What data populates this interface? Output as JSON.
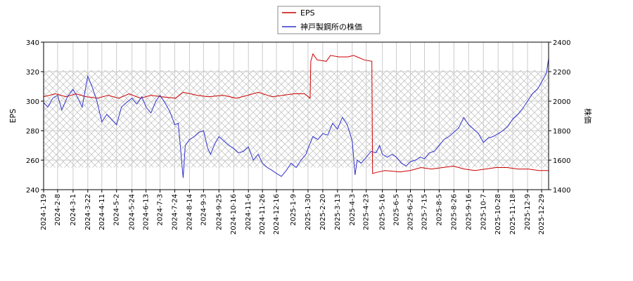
{
  "chart_data": {
    "type": "line",
    "legend": {
      "placement": "top-center",
      "entries": [
        "EPS",
        "神戸製鋼所の株価"
      ]
    },
    "y_left": {
      "label": "EPS",
      "range": [
        240,
        340
      ],
      "ticks": [
        240,
        260,
        280,
        300,
        320,
        340
      ]
    },
    "y_right": {
      "label": "株価",
      "range": [
        1400,
        2400
      ],
      "ticks": [
        1400,
        1600,
        1800,
        2000,
        2200,
        2400
      ]
    },
    "x_ticks": [
      "2024-1-19",
      "2024-2-8",
      "2024-3-1",
      "2024-3-22",
      "2024-4-11",
      "2024-5-2",
      "2024-5-24",
      "2024-6-13",
      "2024-7-3",
      "2024-7-24",
      "2024-8-14",
      "2024-9-3",
      "2024-9-25",
      "2024-10-16",
      "2024-11-6",
      "2024-11-26",
      "2024-12-16",
      "2025-1-9",
      "2025-1-30",
      "2025-2-20",
      "2025-3-13",
      "2025-4-3",
      "2025-4-23",
      "2025-5-16",
      "2025-6-5",
      "2025-6-25",
      "2025-7-15",
      "2025-8-5",
      "2025-8-26",
      "2025-9-16",
      "2025-10-7",
      "2025-10-28",
      "2025-11-18",
      "2025-12-9",
      "2025-12-29"
    ],
    "x_range": [
      "2024-01-19",
      "2026-01-08"
    ],
    "shaded_band": {
      "axis": "left",
      "from": 255,
      "to": 321,
      "pattern": "crosshatch"
    },
    "grid": true,
    "colors": {
      "eps": "#cc0000",
      "price": "#3333cc",
      "grid": "#cccccc",
      "hatch": "#bbbbbb"
    },
    "series": [
      {
        "name": "EPS",
        "axis": "left",
        "points": [
          [
            "2024-01-19",
            303
          ],
          [
            "2024-02-05",
            305
          ],
          [
            "2024-02-20",
            303
          ],
          [
            "2024-03-05",
            305
          ],
          [
            "2024-03-20",
            303
          ],
          [
            "2024-04-05",
            302
          ],
          [
            "2024-04-20",
            304
          ],
          [
            "2024-05-05",
            302
          ],
          [
            "2024-05-20",
            305
          ],
          [
            "2024-06-05",
            302
          ],
          [
            "2024-06-20",
            304
          ],
          [
            "2024-07-05",
            303
          ],
          [
            "2024-07-25",
            302
          ],
          [
            "2024-08-05",
            306
          ],
          [
            "2024-08-25",
            304
          ],
          [
            "2024-09-10",
            303
          ],
          [
            "2024-10-01",
            304
          ],
          [
            "2024-10-20",
            302
          ],
          [
            "2024-11-05",
            304
          ],
          [
            "2024-11-20",
            306
          ],
          [
            "2024-12-10",
            303
          ],
          [
            "2024-12-25",
            304
          ],
          [
            "2025-01-10",
            305
          ],
          [
            "2025-01-25",
            305
          ],
          [
            "2025-02-02",
            302
          ],
          [
            "2025-02-03",
            327
          ],
          [
            "2025-02-06",
            332
          ],
          [
            "2025-02-12",
            328
          ],
          [
            "2025-02-25",
            327
          ],
          [
            "2025-03-03",
            331
          ],
          [
            "2025-03-15",
            330
          ],
          [
            "2025-03-28",
            330
          ],
          [
            "2025-04-05",
            331
          ],
          [
            "2025-04-20",
            328
          ],
          [
            "2025-05-01",
            327
          ],
          [
            "2025-05-02",
            251
          ],
          [
            "2025-05-10",
            252
          ],
          [
            "2025-05-20",
            253
          ],
          [
            "2025-06-10",
            252
          ],
          [
            "2025-06-25",
            253
          ],
          [
            "2025-07-10",
            255
          ],
          [
            "2025-07-25",
            254
          ],
          [
            "2025-08-10",
            255
          ],
          [
            "2025-08-25",
            256
          ],
          [
            "2025-09-10",
            254
          ],
          [
            "2025-09-25",
            253
          ],
          [
            "2025-10-10",
            254
          ],
          [
            "2025-10-25",
            255
          ],
          [
            "2025-11-10",
            255
          ],
          [
            "2025-11-25",
            254
          ],
          [
            "2025-12-10",
            254
          ],
          [
            "2025-12-25",
            253
          ],
          [
            "2026-01-08",
            253
          ]
        ]
      },
      {
        "name": "神戸製鋼所の株価",
        "axis": "right",
        "points": [
          [
            "2024-01-19",
            1990
          ],
          [
            "2024-01-25",
            1960
          ],
          [
            "2024-02-01",
            2020
          ],
          [
            "2024-02-08",
            2040
          ],
          [
            "2024-02-14",
            1940
          ],
          [
            "2024-02-22",
            2030
          ],
          [
            "2024-03-01",
            2080
          ],
          [
            "2024-03-08",
            2020
          ],
          [
            "2024-03-14",
            1960
          ],
          [
            "2024-03-22",
            2170
          ],
          [
            "2024-03-28",
            2100
          ],
          [
            "2024-04-04",
            2000
          ],
          [
            "2024-04-11",
            1860
          ],
          [
            "2024-04-18",
            1910
          ],
          [
            "2024-04-26",
            1870
          ],
          [
            "2024-05-02",
            1840
          ],
          [
            "2024-05-09",
            1960
          ],
          [
            "2024-05-16",
            1990
          ],
          [
            "2024-05-24",
            2020
          ],
          [
            "2024-05-31",
            1980
          ],
          [
            "2024-06-07",
            2030
          ],
          [
            "2024-06-13",
            1960
          ],
          [
            "2024-06-20",
            1920
          ],
          [
            "2024-06-27",
            2000
          ],
          [
            "2024-07-03",
            2040
          ],
          [
            "2024-07-10",
            1990
          ],
          [
            "2024-07-17",
            1930
          ],
          [
            "2024-07-24",
            1840
          ],
          [
            "2024-07-29",
            1850
          ],
          [
            "2024-08-05",
            1480
          ],
          [
            "2024-08-08",
            1700
          ],
          [
            "2024-08-14",
            1740
          ],
          [
            "2024-08-21",
            1760
          ],
          [
            "2024-08-28",
            1790
          ],
          [
            "2024-09-03",
            1800
          ],
          [
            "2024-09-09",
            1680
          ],
          [
            "2024-09-13",
            1640
          ],
          [
            "2024-09-20",
            1720
          ],
          [
            "2024-09-25",
            1760
          ],
          [
            "2024-10-02",
            1730
          ],
          [
            "2024-10-09",
            1700
          ],
          [
            "2024-10-16",
            1680
          ],
          [
            "2024-10-23",
            1650
          ],
          [
            "2024-10-30",
            1660
          ],
          [
            "2024-11-06",
            1690
          ],
          [
            "2024-11-13",
            1600
          ],
          [
            "2024-11-20",
            1640
          ],
          [
            "2024-11-26",
            1580
          ],
          [
            "2024-12-03",
            1550
          ],
          [
            "2024-12-10",
            1530
          ],
          [
            "2024-12-16",
            1510
          ],
          [
            "2024-12-23",
            1490
          ],
          [
            "2024-12-30",
            1530
          ],
          [
            "2025-01-06",
            1580
          ],
          [
            "2025-01-13",
            1550
          ],
          [
            "2025-01-20",
            1600
          ],
          [
            "2025-01-27",
            1640
          ],
          [
            "2025-01-30",
            1680
          ],
          [
            "2025-02-06",
            1760
          ],
          [
            "2025-02-13",
            1740
          ],
          [
            "2025-02-20",
            1780
          ],
          [
            "2025-02-27",
            1770
          ],
          [
            "2025-03-06",
            1850
          ],
          [
            "2025-03-13",
            1810
          ],
          [
            "2025-03-20",
            1890
          ],
          [
            "2025-03-27",
            1840
          ],
          [
            "2025-04-03",
            1730
          ],
          [
            "2025-04-07",
            1500
          ],
          [
            "2025-04-10",
            1600
          ],
          [
            "2025-04-16",
            1580
          ],
          [
            "2025-04-23",
            1620
          ],
          [
            "2025-04-30",
            1660
          ],
          [
            "2025-05-07",
            1650
          ],
          [
            "2025-05-12",
            1700
          ],
          [
            "2025-05-16",
            1640
          ],
          [
            "2025-05-23",
            1620
          ],
          [
            "2025-05-30",
            1640
          ],
          [
            "2025-06-05",
            1620
          ],
          [
            "2025-06-12",
            1580
          ],
          [
            "2025-06-19",
            1560
          ],
          [
            "2025-06-25",
            1590
          ],
          [
            "2025-07-02",
            1600
          ],
          [
            "2025-07-09",
            1620
          ],
          [
            "2025-07-15",
            1610
          ],
          [
            "2025-07-22",
            1650
          ],
          [
            "2025-07-29",
            1660
          ],
          [
            "2025-08-05",
            1700
          ],
          [
            "2025-08-12",
            1740
          ],
          [
            "2025-08-19",
            1760
          ],
          [
            "2025-08-26",
            1790
          ],
          [
            "2025-09-02",
            1820
          ],
          [
            "2025-09-09",
            1890
          ],
          [
            "2025-09-16",
            1840
          ],
          [
            "2025-09-23",
            1810
          ],
          [
            "2025-09-30",
            1780
          ],
          [
            "2025-10-07",
            1720
          ],
          [
            "2025-10-14",
            1750
          ],
          [
            "2025-10-21",
            1760
          ],
          [
            "2025-10-28",
            1780
          ],
          [
            "2025-11-04",
            1800
          ],
          [
            "2025-11-11",
            1830
          ],
          [
            "2025-11-18",
            1880
          ],
          [
            "2025-11-25",
            1910
          ],
          [
            "2025-12-02",
            1950
          ],
          [
            "2025-12-09",
            2000
          ],
          [
            "2025-12-16",
            2050
          ],
          [
            "2025-12-23",
            2080
          ],
          [
            "2025-12-29",
            2130
          ],
          [
            "2026-01-05",
            2190
          ],
          [
            "2026-01-08",
            2290
          ]
        ]
      }
    ]
  }
}
